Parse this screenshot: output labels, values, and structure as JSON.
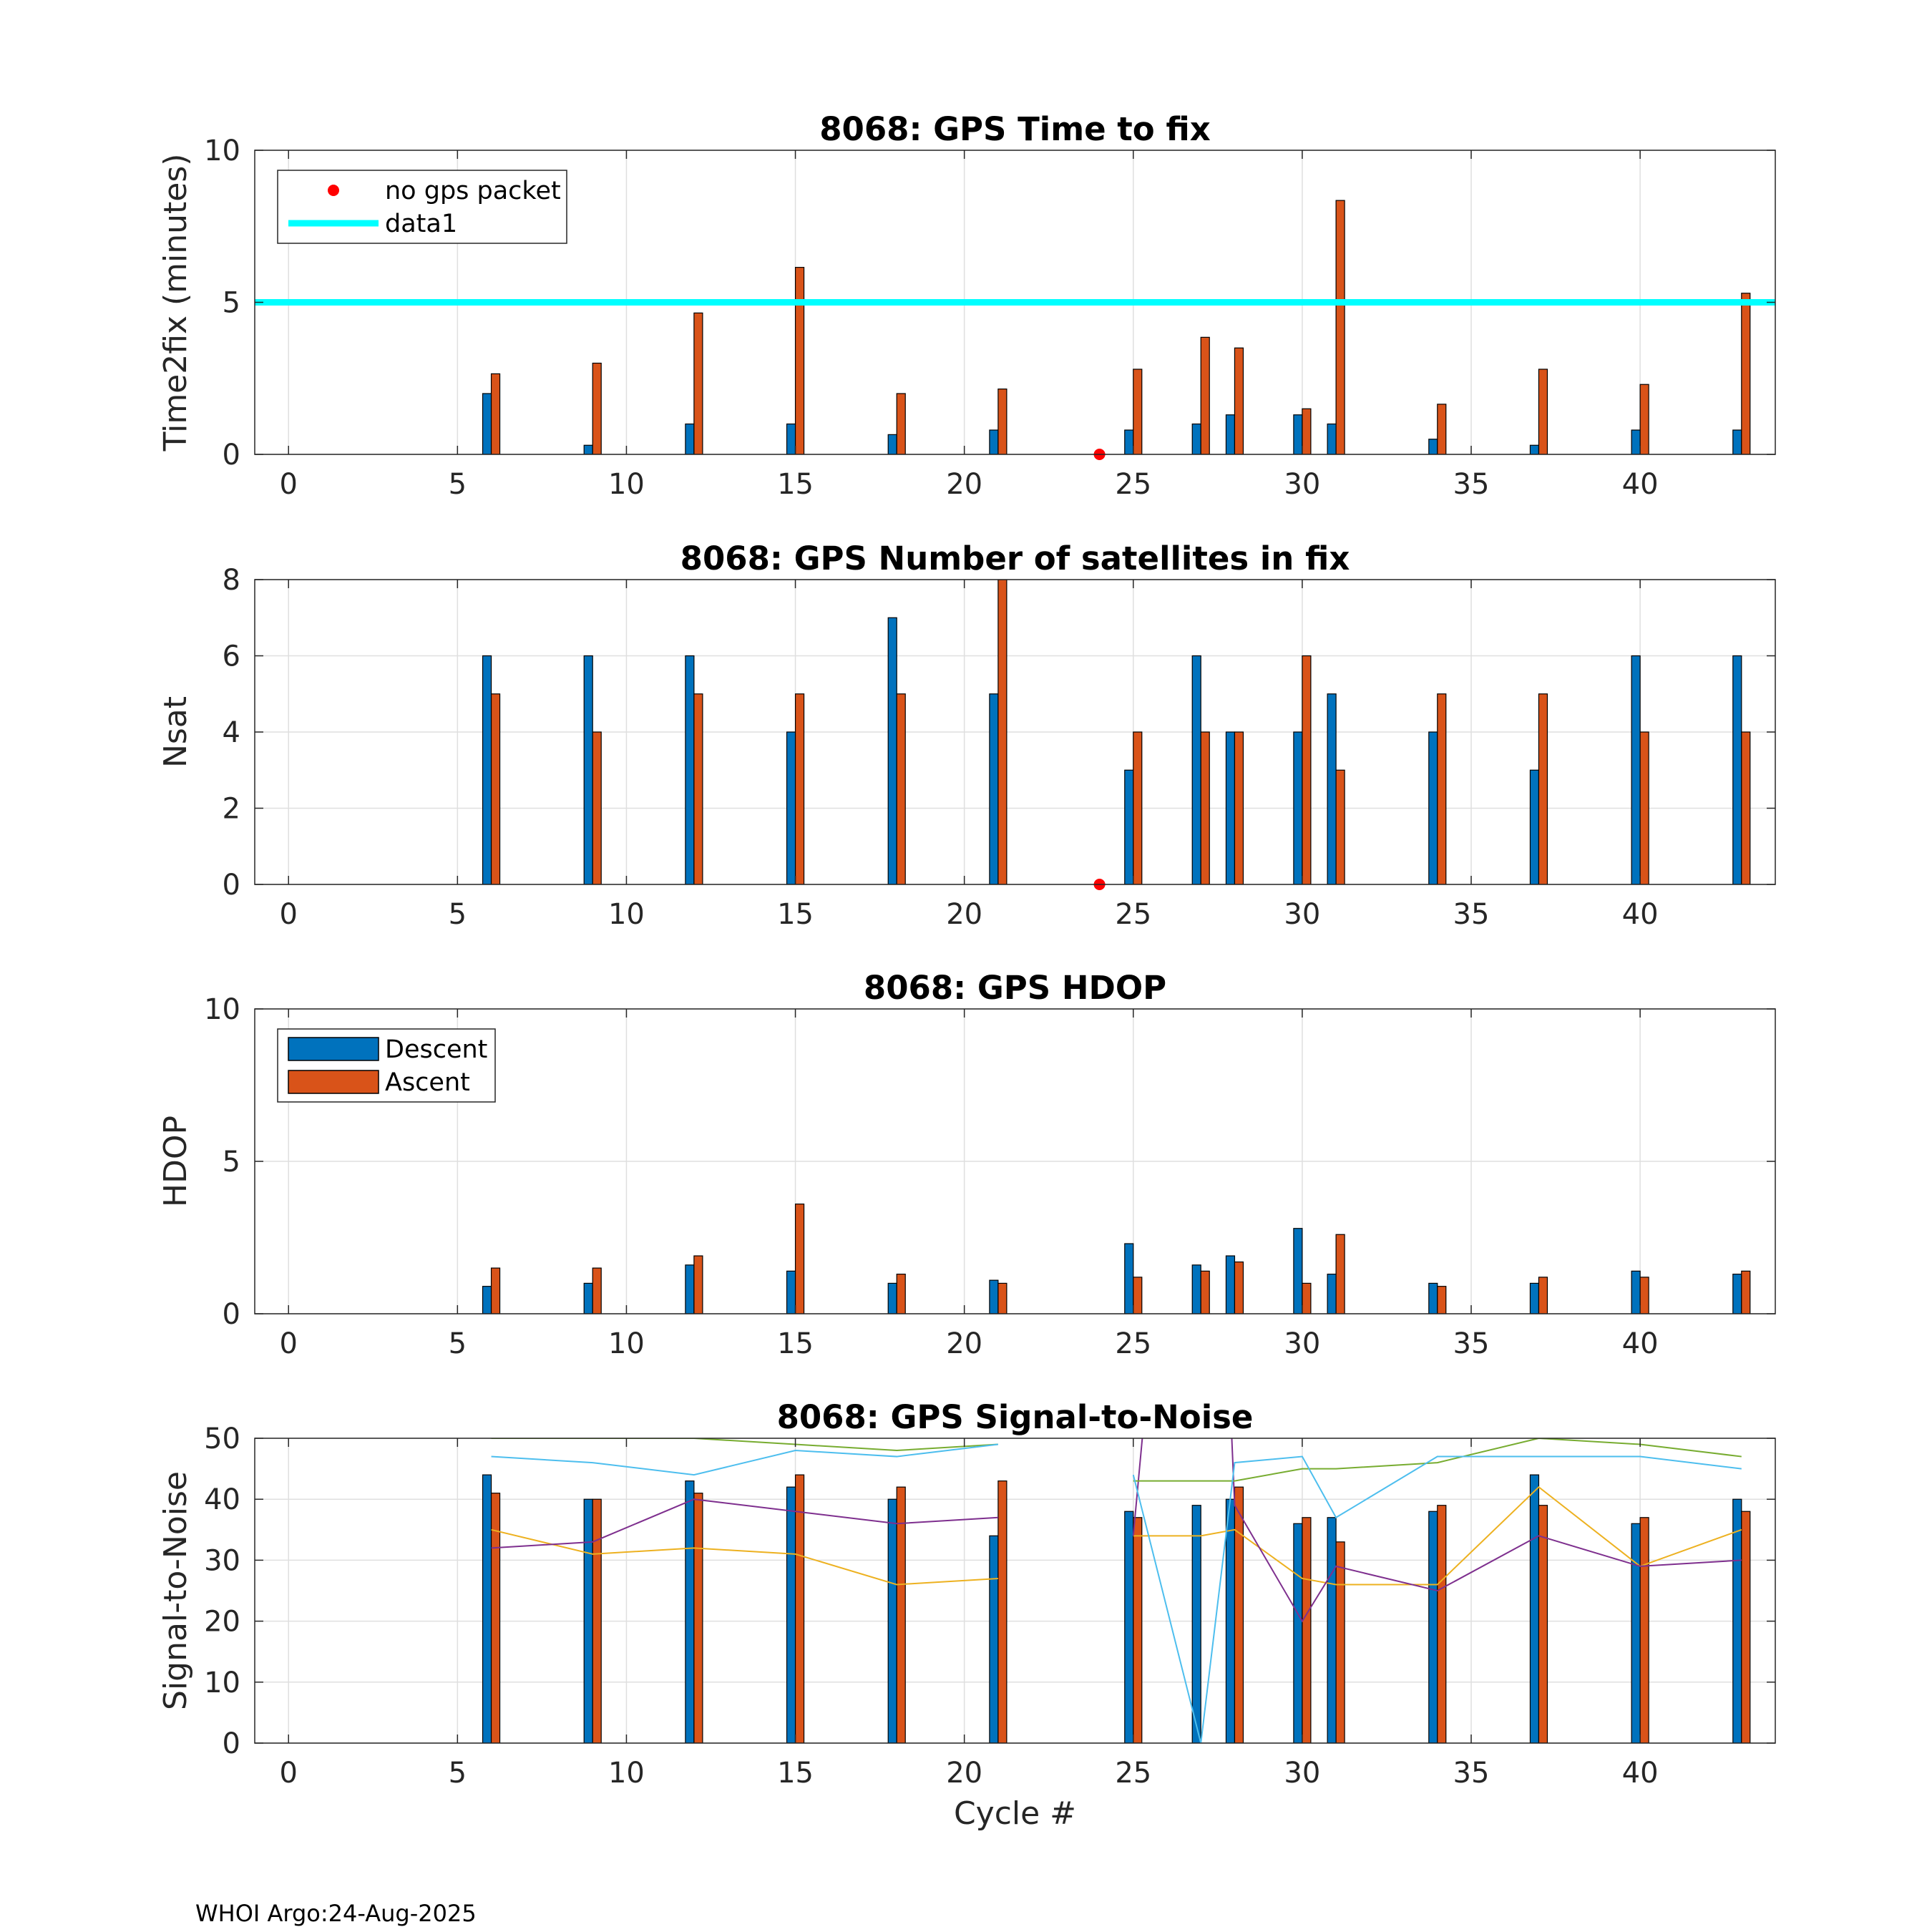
{
  "footer": "WHOI Argo:24-Aug-2025",
  "colors": {
    "descent": "#0072BD",
    "ascent": "#D95319",
    "threshold": "#00FFFF",
    "nogps": "#FF0000",
    "snr_lines": [
      "#EDB120",
      "#7E2F8E",
      "#77AC30",
      "#4DBEEE"
    ]
  },
  "chart_data": [
    {
      "id": "time2fix",
      "type": "bar",
      "title": "8068: GPS Time to fix",
      "xlabel": "",
      "ylabel": "Time2fix (minutes)",
      "xlim": [
        -1,
        44
      ],
      "ylim": [
        0,
        10
      ],
      "xticks": [
        0,
        5,
        10,
        15,
        20,
        25,
        30,
        35,
        40
      ],
      "yticks": [
        0,
        5,
        10
      ],
      "grid": true,
      "legend": {
        "position": "top-left",
        "entries": [
          {
            "label": "no gps packet",
            "kind": "marker"
          },
          {
            "label": "data1",
            "kind": "hline"
          }
        ]
      },
      "hline": 5,
      "no_gps_cycles": [
        24
      ],
      "x": [
        6,
        9,
        12,
        15,
        18,
        21,
        25,
        27,
        28,
        30,
        31,
        34,
        37,
        40,
        43
      ],
      "series": [
        {
          "name": "Descent",
          "values": [
            2.0,
            0.3,
            1.0,
            1.0,
            0.65,
            0.8,
            0.8,
            1.0,
            1.3,
            1.3,
            1.0,
            0.5,
            0.3,
            0.8,
            0.8
          ]
        },
        {
          "name": "Ascent",
          "values": [
            2.65,
            3.0,
            4.65,
            6.15,
            2.0,
            2.15,
            2.8,
            3.85,
            3.5,
            1.5,
            8.35,
            1.65,
            2.8,
            2.3,
            5.3
          ]
        }
      ]
    },
    {
      "id": "nsat",
      "type": "bar",
      "title": "8068: GPS Number of satellites in fix",
      "xlabel": "",
      "ylabel": "Nsat",
      "xlim": [
        -1,
        44
      ],
      "ylim": [
        0,
        8
      ],
      "xticks": [
        0,
        5,
        10,
        15,
        20,
        25,
        30,
        35,
        40
      ],
      "yticks": [
        0,
        2,
        4,
        6,
        8
      ],
      "grid": true,
      "no_gps_cycles": [
        24
      ],
      "x": [
        6,
        9,
        12,
        15,
        18,
        21,
        25,
        27,
        28,
        30,
        31,
        34,
        37,
        40,
        43
      ],
      "series": [
        {
          "name": "Descent",
          "values": [
            6,
            6,
            6,
            4,
            7,
            5,
            3,
            6,
            4,
            4,
            5,
            4,
            3,
            6,
            6
          ]
        },
        {
          "name": "Ascent",
          "values": [
            5,
            4,
            5,
            5,
            5,
            8,
            4,
            4,
            4,
            6,
            3,
            5,
            5,
            4,
            4
          ]
        }
      ]
    },
    {
      "id": "hdop",
      "type": "bar",
      "title": "8068: GPS HDOP",
      "xlabel": "",
      "ylabel": "HDOP",
      "xlim": [
        -1,
        44
      ],
      "ylim": [
        0,
        10
      ],
      "xticks": [
        0,
        5,
        10,
        15,
        20,
        25,
        30,
        35,
        40
      ],
      "yticks": [
        0,
        5,
        10
      ],
      "grid": true,
      "legend": {
        "position": "top-left",
        "entries": [
          {
            "label": "Descent",
            "kind": "patch"
          },
          {
            "label": "Ascent",
            "kind": "patch"
          }
        ]
      },
      "x": [
        6,
        9,
        12,
        15,
        18,
        21,
        25,
        27,
        28,
        30,
        31,
        34,
        37,
        40,
        43
      ],
      "series": [
        {
          "name": "Descent",
          "values": [
            0.9,
            1.0,
            1.6,
            1.4,
            1.0,
            1.1,
            2.3,
            1.6,
            1.9,
            2.8,
            1.3,
            1.0,
            1.0,
            1.4,
            1.3
          ]
        },
        {
          "name": "Ascent",
          "values": [
            1.5,
            1.5,
            1.9,
            3.6,
            1.3,
            1.0,
            1.2,
            1.4,
            1.7,
            1.0,
            2.6,
            0.9,
            1.2,
            1.2,
            1.4
          ]
        }
      ]
    },
    {
      "id": "snr",
      "type": "bar",
      "title": "8068: GPS Signal-to-Noise",
      "xlabel": "Cycle #",
      "ylabel": "Signal-to-Noise",
      "xlim": [
        -1,
        44
      ],
      "ylim": [
        0,
        50
      ],
      "xticks": [
        0,
        5,
        10,
        15,
        20,
        25,
        30,
        35,
        40
      ],
      "yticks": [
        0,
        10,
        20,
        30,
        40,
        50
      ],
      "grid": true,
      "x": [
        6,
        9,
        12,
        15,
        18,
        21,
        25,
        27,
        28,
        30,
        31,
        34,
        37,
        40,
        43
      ],
      "series": [
        {
          "name": "Descent",
          "values": [
            44,
            40,
            43,
            42,
            40,
            34,
            38,
            39,
            40,
            36,
            37,
            38,
            44,
            36,
            40
          ]
        },
        {
          "name": "Ascent",
          "values": [
            41,
            40,
            41,
            44,
            42,
            43,
            37,
            0,
            42,
            37,
            33,
            39,
            39,
            37,
            38
          ]
        }
      ],
      "lines": [
        {
          "segments": [
            {
              "x": [
                6,
                9,
                12,
                15,
                18,
                21
              ],
              "y": [
                35,
                31,
                32,
                31,
                26,
                27
              ]
            },
            {
              "x": [
                25,
                27,
                28,
                30,
                31,
                34,
                37,
                40,
                43
              ],
              "y": [
                34,
                34,
                35,
                27,
                26,
                26,
                42,
                29,
                35
              ]
            }
          ]
        },
        {
          "segments": [
            {
              "x": [
                6,
                9,
                12,
                15,
                18,
                21
              ],
              "y": [
                32,
                33,
                40,
                38,
                36,
                37
              ]
            },
            {
              "x": [
                25,
                25.3,
                25.3
              ],
              "y": [
                34,
                52,
                52
              ]
            },
            {
              "x": [
                27.9,
                28,
                30,
                31,
                34,
                37,
                40,
                43
              ],
              "y": [
                52,
                39,
                20,
                29,
                25,
                34,
                29,
                30
              ]
            }
          ]
        },
        {
          "segments": [
            {
              "x": [
                6,
                9,
                12,
                15,
                18,
                21
              ],
              "y": [
                50,
                50,
                50,
                49,
                48,
                49
              ]
            },
            {
              "x": [
                25,
                27,
                28,
                30,
                31,
                34,
                37,
                40,
                43
              ],
              "y": [
                43,
                43,
                43,
                45,
                45,
                46,
                50,
                49,
                47
              ]
            }
          ]
        },
        {
          "segments": [
            {
              "x": [
                6,
                9,
                12,
                15,
                18,
                21
              ],
              "y": [
                47,
                46,
                44,
                48,
                47,
                49
              ]
            },
            {
              "x": [
                25,
                27,
                28,
                30,
                31,
                34,
                37,
                40,
                43
              ],
              "y": [
                44,
                0,
                46,
                47,
                37,
                47,
                47,
                47,
                45
              ]
            }
          ]
        }
      ]
    }
  ]
}
